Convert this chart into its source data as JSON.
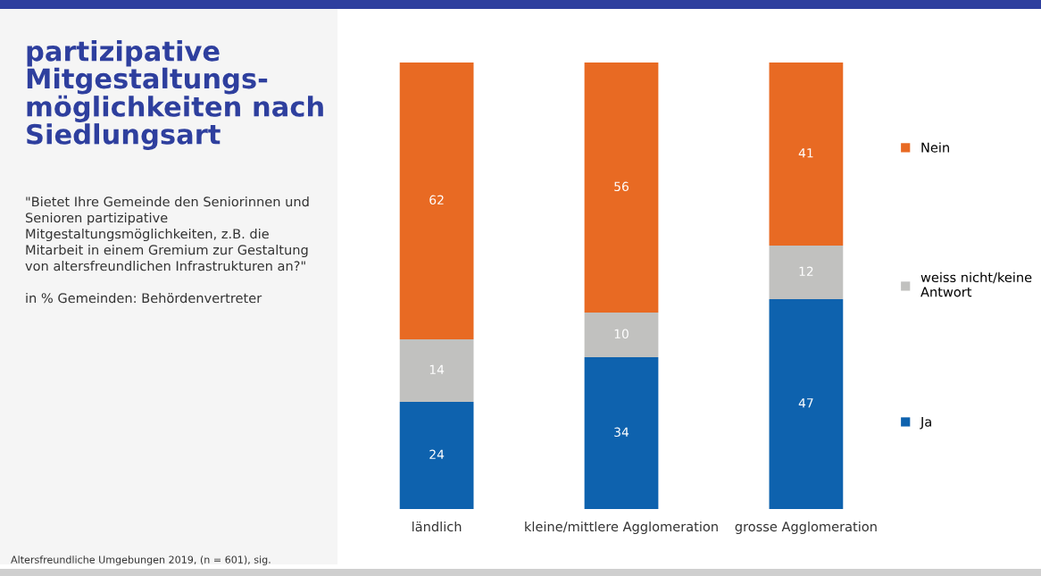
{
  "chart_data": {
    "type": "bar",
    "stacked": true,
    "title": "partizipative\nMitgestaltungs-\nmöglichkeiten nach\nSiedlungsart",
    "subtitle": "\"Bietet Ihre Gemeinde den Seniorinnen und\nSenioren partizipative\nMitgestaltungsmöglichkeiten, z.B. die\nMitarbeit in einem Gremium zur Gestaltung\nvon altersfreundlichen Infrastrukturen an?\"\n\nin % Gemeinden: Behördenvertreter",
    "annotations": [
      "Altersfreundliche Umgebungen 2019, (n = 601), sig."
    ],
    "categories": [
      "ländlich",
      "kleine/mittlere Agglomeration",
      "grosse Agglomeration"
    ],
    "series": [
      {
        "name": "Ja",
        "color": "#0e62ae",
        "values": [
          24,
          34,
          47
        ]
      },
      {
        "name": "weiss nicht/keine\nAntwort",
        "color": "#c1c1bf",
        "values": [
          14,
          10,
          12
        ]
      },
      {
        "name": "Nein",
        "color": "#e86a23",
        "values": [
          62,
          56,
          41
        ]
      }
    ],
    "ylim": [
      0,
      100
    ],
    "data_labels": true,
    "legend": "right",
    "tick_labels": "x",
    "grid": false
  }
}
